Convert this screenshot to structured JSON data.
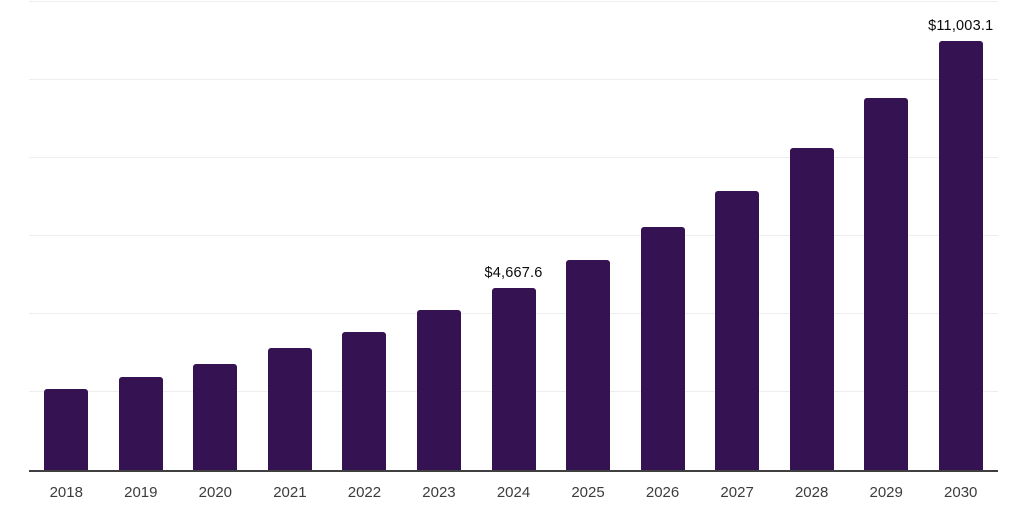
{
  "chart_data": {
    "type": "bar",
    "categories": [
      "2018",
      "2019",
      "2020",
      "2021",
      "2022",
      "2023",
      "2024",
      "2025",
      "2026",
      "2027",
      "2028",
      "2029",
      "2030"
    ],
    "values": [
      2080,
      2380,
      2720,
      3130,
      3550,
      4110,
      4667.6,
      5390,
      6220,
      7160,
      8260,
      9530,
      11003.1
    ],
    "annotations": [
      {
        "category_index": 6,
        "text": "$4,667.6"
      },
      {
        "category_index": 12,
        "text": "$11,003.1"
      }
    ],
    "title": "",
    "xlabel": "",
    "ylabel": "",
    "ylim": [
      0,
      12000
    ],
    "gridline_interval": 2000,
    "grid": true,
    "legend": false,
    "bar_color": "#351352",
    "axis_line_color": "#3f3f3f",
    "gridline_color": "#eeeeee",
    "tick_label_color": "#3c3c3c",
    "data_label_color": "#0a0a0a",
    "background_color": "#ffffff"
  }
}
